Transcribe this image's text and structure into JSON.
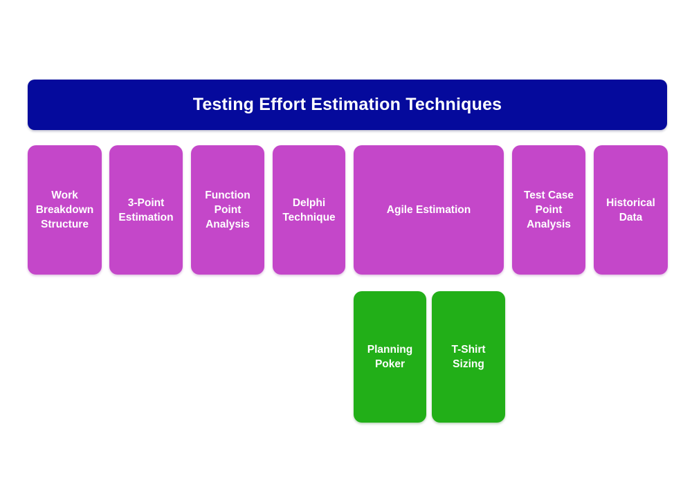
{
  "title": "Testing Effort Estimation Techniques",
  "colors": {
    "page_bg": "#ffffff",
    "banner_bg": "#050a9c",
    "technique_bg": "#c447c9",
    "subtechnique_bg": "#22af18",
    "text": "#ffffff"
  },
  "techniques": [
    {
      "label": "Work Breakdown Structure"
    },
    {
      "label": "3-Point Estimation"
    },
    {
      "label": "Function Point Analysis"
    },
    {
      "label": "Delphi Technique"
    },
    {
      "label": "Agile Estimation"
    },
    {
      "label": "Test Case Point Analysis"
    },
    {
      "label": "Historical Data"
    }
  ],
  "agile_subtechniques": [
    {
      "label": "Planning Poker"
    },
    {
      "label": "T-Shirt Sizing"
    }
  ]
}
